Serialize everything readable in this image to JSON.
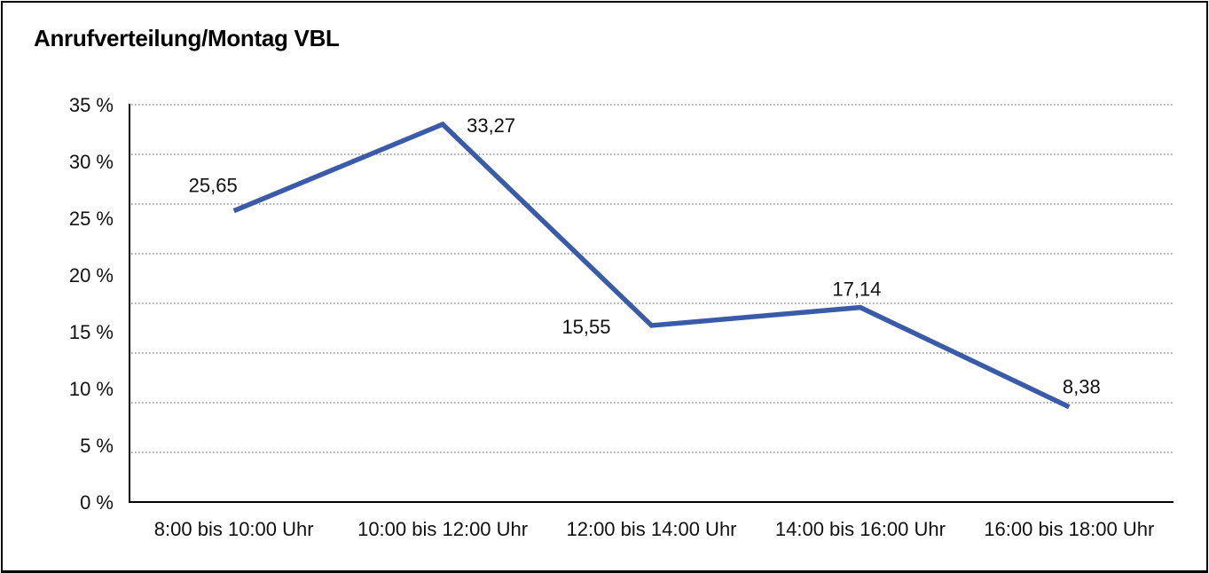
{
  "window": {
    "background_color": "#ffffff",
    "frame_border_color": "#000000"
  },
  "chart_data": {
    "type": "line",
    "title": "Anrufverteilung/Montag VBL",
    "categories": [
      "8:00 bis 10:00 Uhr",
      "10:00 bis 12:00 Uhr",
      "12:00 bis 14:00 Uhr",
      "14:00 bis 16:00 Uhr",
      "16:00 bis 18:00 Uhr"
    ],
    "series": [
      {
        "values": [
          25.65,
          33.27,
          15.55,
          17.14,
          8.38
        ],
        "value_labels": [
          "25,65",
          "33,27",
          "15,55",
          "17,14",
          "8,38"
        ],
        "color": "#3A5BA8"
      }
    ],
    "xlabel": "",
    "ylabel": "",
    "ylim": [
      0,
      35
    ],
    "y_tick_labels_top_to_bottom": [
      "35 %",
      "30 %",
      "25 %",
      "20 %",
      "15 %",
      "10 %",
      "5 %",
      "0 %"
    ],
    "grid": "horizontal-dotted",
    "gridline_color": "#7a7a7a",
    "axis_color": "#000000",
    "legend_position": "none"
  }
}
